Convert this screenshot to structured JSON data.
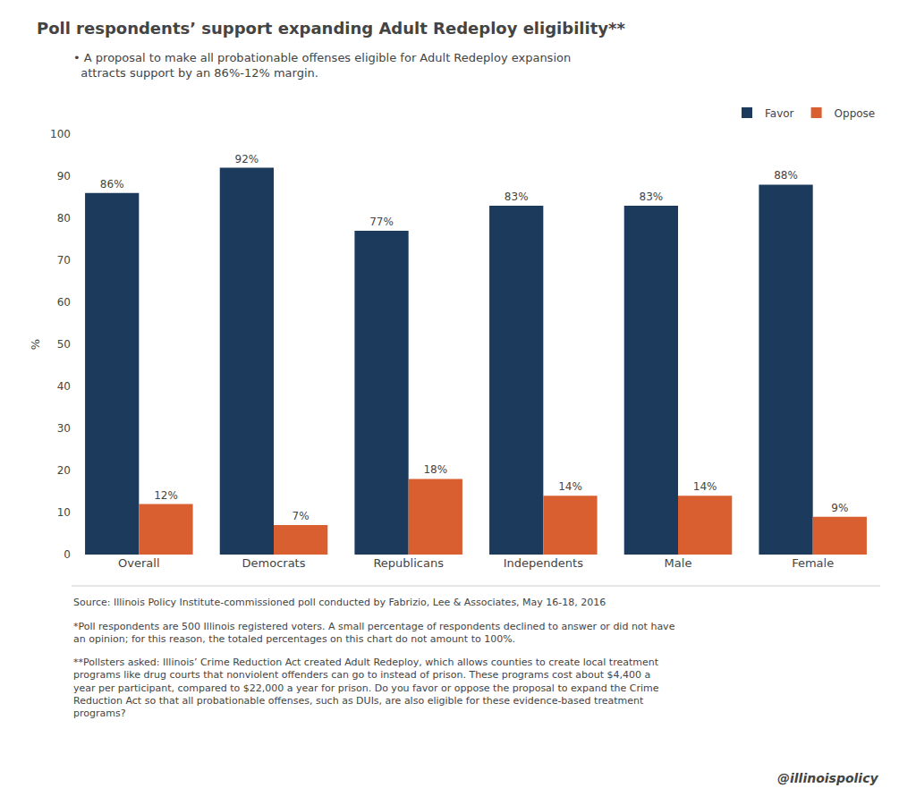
{
  "chart_data": {
    "type": "bar",
    "title": "Poll respondents’ support expanding Adult Redeploy eligibility**",
    "subtitle": "• A proposal to make all probationable offenses eligible for Adult Redeploy expansion\n  attracts support by an 86%-12% margin.",
    "ylabel": "%",
    "categories": [
      "Overall",
      "Democrats",
      "Republicans",
      "Independents",
      "Male",
      "Female"
    ],
    "series": [
      {
        "name": "Favor",
        "color": "#1b3a5c",
        "values": [
          86,
          92,
          77,
          83,
          83,
          88
        ],
        "value_labels": [
          "86%",
          "92%",
          "77%",
          "83%",
          "83%",
          "88%"
        ]
      },
      {
        "name": "Oppose",
        "color": "#d95f30",
        "values": [
          12,
          7,
          18,
          14,
          14,
          9
        ],
        "value_labels": [
          "12%",
          "7%",
          "18%",
          "14%",
          "14%",
          "9%"
        ]
      }
    ],
    "ylim": [
      0,
      100
    ],
    "yticks": [
      0,
      10,
      20,
      30,
      40,
      50,
      60,
      70,
      80,
      90,
      100
    ],
    "grid": false,
    "legend": "upper right",
    "data_labels": true,
    "annotations": [
      "Source: Illinois Policy Institute-commissioned poll conducted by Fabrizio, Lee & Associates, May 16-18, 2016",
      "*Poll respondents are 500 Illinois registered voters. A small percentage of respondents declined to answer or did not have\nan opinion; for this reason, the totaled percentages on this chart do not amount to 100%.",
      "**Pollsters asked: Illinois’ Crime Reduction Act created Adult Redeploy, which allows counties to create local treatment\nprograms like drug courts that nonviolent offenders can go to instead of prison. These programs cost about $4,400 a\nyear per participant, compared to $22,000 a year for prison. Do you favor or oppose the proposal to expand the Crime\nReduction Act so that all probationable offenses, such as DUIs, are also eligible for these evidence-based treatment\nprograms?",
      "@illinoispolicy"
    ]
  }
}
